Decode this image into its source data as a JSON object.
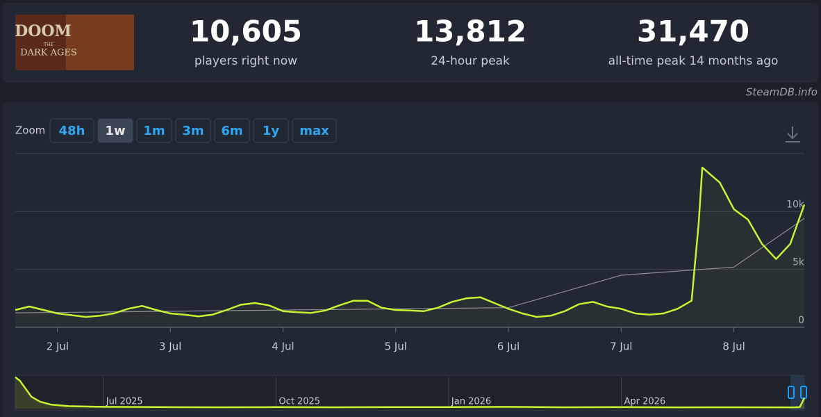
{
  "header": {
    "logo": {
      "lines": [
        "DOOM",
        "THE",
        "DARK AGES"
      ]
    },
    "stats": [
      {
        "value": "10,605",
        "label": "players right now"
      },
      {
        "value": "13,812",
        "label": "24-hour peak"
      },
      {
        "value": "31,470",
        "label": "all-time peak 14 months ago"
      }
    ]
  },
  "source": "SteamDB.info",
  "zoom": {
    "label": "Zoom",
    "options": [
      "48h",
      "1w",
      "1m",
      "3m",
      "6m",
      "1y",
      "max"
    ],
    "active": 1
  },
  "chart_data": [
    {
      "type": "line",
      "x": [
        1.625,
        1.75,
        1.875,
        2.0,
        2.125,
        2.25,
        2.375,
        2.5,
        2.625,
        2.75,
        2.875,
        3.0,
        3.125,
        3.25,
        3.375,
        3.5,
        3.625,
        3.75,
        3.875,
        4.0,
        4.125,
        4.25,
        4.375,
        4.5,
        4.625,
        4.75,
        4.875,
        5.0,
        5.125,
        5.25,
        5.375,
        5.5,
        5.625,
        5.75,
        5.875,
        6.0,
        6.125,
        6.25,
        6.375,
        6.5,
        6.625,
        6.75,
        6.875,
        7.0,
        7.125,
        7.25,
        7.375,
        7.5,
        7.625,
        7.6875,
        7.72,
        7.875,
        8.0,
        8.125,
        8.25,
        8.375,
        8.5,
        8.625
      ],
      "series": [
        {
          "color": "#c6f432",
          "values": [
            1500,
            1800,
            1500,
            1200,
            1050,
            900,
            1000,
            1200,
            1600,
            1850,
            1500,
            1200,
            1100,
            950,
            1100,
            1500,
            1950,
            2100,
            1900,
            1400,
            1300,
            1250,
            1450,
            1900,
            2300,
            2300,
            1700,
            1500,
            1450,
            1400,
            1700,
            2200,
            2500,
            2600,
            2100,
            1600,
            1200,
            900,
            1000,
            1400,
            2000,
            2200,
            1800,
            1600,
            1200,
            1100,
            1200,
            1600,
            2300,
            9000,
            13800,
            12500,
            10200,
            9300,
            7200,
            5900,
            7200,
            10600
          ]
        },
        {
          "color": "#8a8d92",
          "x": [
            1.625,
            6.0,
            7.0,
            8.0,
            8.625
          ],
          "values": [
            1250,
            1700,
            4500,
            5200,
            9400
          ]
        }
      ],
      "xlim": [
        1.625,
        8.625
      ],
      "xticks": [
        {
          "value": 2,
          "label": "2 Jul"
        },
        {
          "value": 3,
          "label": "3 Jul"
        },
        {
          "value": 4,
          "label": "4 Jul"
        },
        {
          "value": 5,
          "label": "5 Jul"
        },
        {
          "value": 6,
          "label": "6 Jul"
        },
        {
          "value": 7,
          "label": "7 Jul"
        },
        {
          "value": 8,
          "label": "8 Jul"
        }
      ],
      "ylim": [
        0,
        15000
      ],
      "yticks": [
        0,
        {
          "value": 5000,
          "label": "5k"
        },
        {
          "value": 10000,
          "label": "10k"
        }
      ],
      "grid": true
    },
    {
      "type": "line",
      "x": [
        4.47,
        4.55,
        4.65,
        4.75,
        4.9,
        5.1,
        5.4,
        6,
        7,
        8,
        9,
        10,
        11,
        12,
        13,
        14,
        15,
        16,
        17,
        18,
        18.1,
        18.18
      ],
      "series": [
        {
          "color": "#c6f432",
          "values": [
            31470,
            28000,
            20000,
            12000,
            7000,
            4000,
            2500,
            1800,
            1500,
            1400,
            1500,
            1400,
            1600,
            1500,
            1800,
            1400,
            1500,
            1300,
            1400,
            1300,
            1500,
            10600
          ]
        }
      ],
      "xlim": [
        4.47,
        18.18
      ],
      "xticks": [
        {
          "value": 6,
          "label": "Jul 2025"
        },
        {
          "value": 9,
          "label": "Oct 2025"
        },
        {
          "value": 12,
          "label": "Jan 2026"
        },
        {
          "value": 15,
          "label": "Apr 2026"
        }
      ],
      "ylim": [
        0,
        32000
      ],
      "grid": true
    }
  ]
}
